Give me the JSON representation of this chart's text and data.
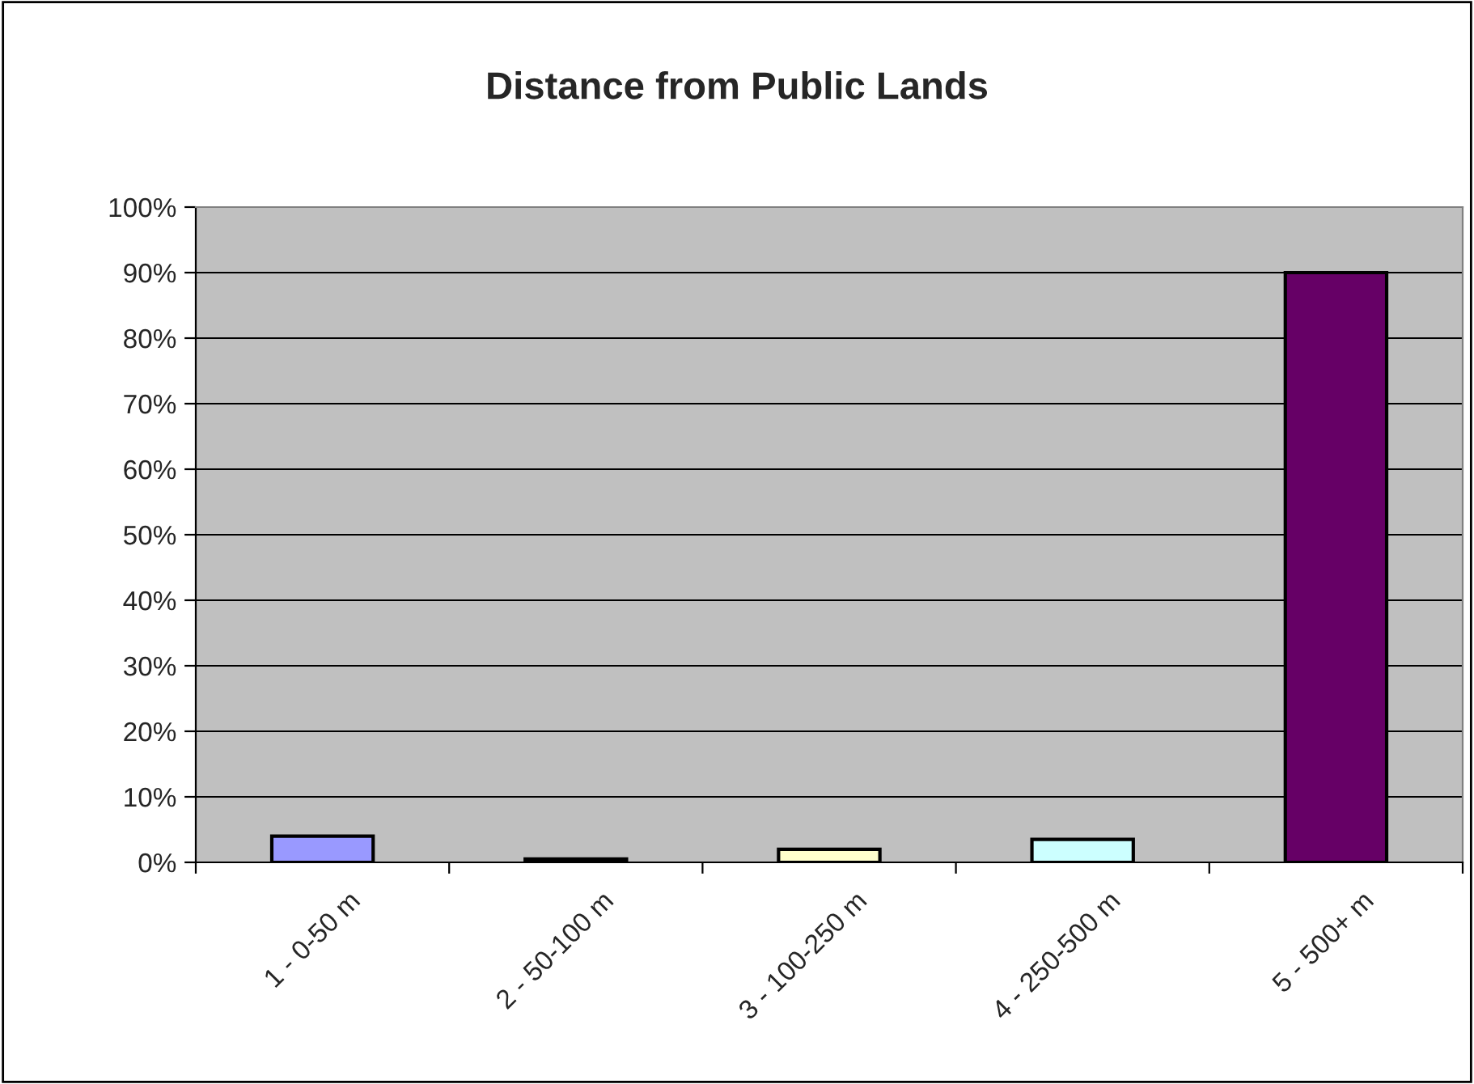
{
  "chart_data": {
    "type": "bar",
    "title": "Distance from Public Lands",
    "categories": [
      "1 - 0-50 m",
      "2 - 50-100 m",
      "3 - 100-250 m",
      "4 - 250-500 m",
      "5 - 500+ m"
    ],
    "values": [
      4,
      0.5,
      2,
      3.5,
      90
    ],
    "colors": [
      "#9999ff",
      "#333333",
      "#ffffcc",
      "#ccffff",
      "#660066"
    ],
    "ylim": [
      0,
      100
    ],
    "yticks": [
      {
        "value": 0,
        "label": "0%"
      },
      {
        "value": 10,
        "label": "10%"
      },
      {
        "value": 20,
        "label": "20%"
      },
      {
        "value": 30,
        "label": "30%"
      },
      {
        "value": 40,
        "label": "40%"
      },
      {
        "value": 50,
        "label": "50%"
      },
      {
        "value": 60,
        "label": "60%"
      },
      {
        "value": 70,
        "label": "70%"
      },
      {
        "value": 80,
        "label": "80%"
      },
      {
        "value": 90,
        "label": "90%"
      },
      {
        "value": 100,
        "label": "100%"
      }
    ],
    "grid": "y"
  }
}
